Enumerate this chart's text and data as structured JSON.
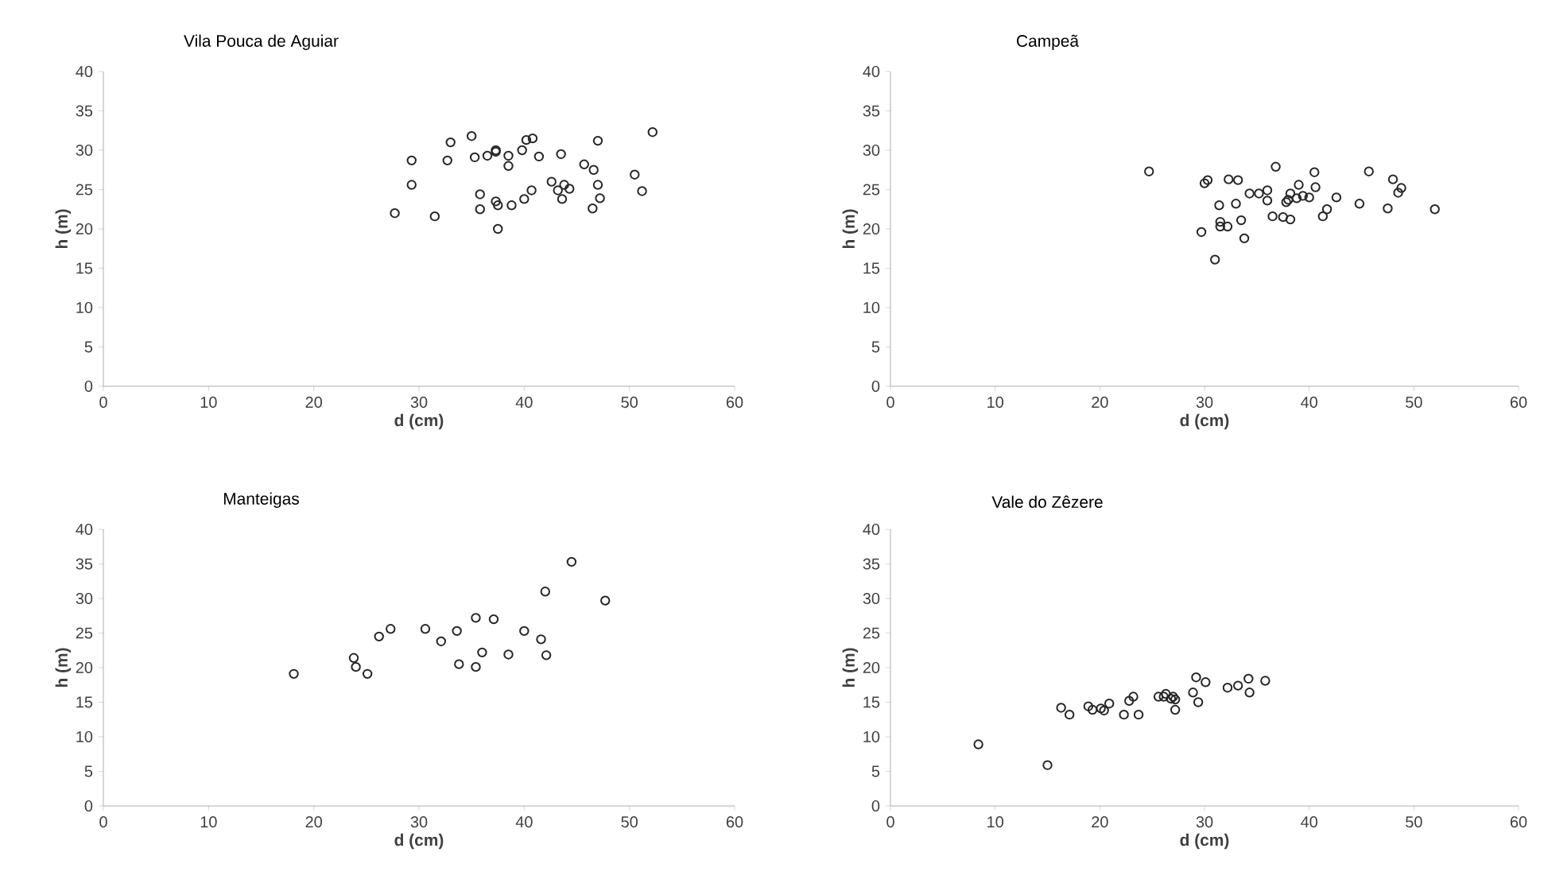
{
  "chart_data": [
    {
      "type": "scatter",
      "title": "Vila Pouca de Aguiar",
      "xlabel": "d (cm)",
      "ylabel": "h (m)",
      "marker": "circle",
      "color": "#262626",
      "xlim": [
        0,
        60
      ],
      "ylim": [
        0,
        40
      ],
      "xticks": [
        0,
        10,
        20,
        30,
        40,
        50,
        60
      ],
      "yticks": [
        0,
        5,
        10,
        15,
        20,
        25,
        30,
        35,
        40
      ],
      "x": [
        27.7,
        29.3,
        29.3,
        31.5,
        32.7,
        33,
        35,
        35.3,
        35.8,
        35.8,
        36.5,
        37.3,
        37.3,
        37.3,
        37.5,
        37.5,
        38.5,
        38.5,
        38.8,
        39.8,
        40,
        40.2,
        40.8,
        40.7,
        41.4,
        42.6,
        43.2,
        43.5,
        43.6,
        43.8,
        44.3,
        45.7,
        46.5,
        46.6,
        47,
        47,
        47.2,
        50.5,
        51.2,
        52.2
      ],
      "values": [
        22,
        28.7,
        25.6,
        21.6,
        28.7,
        31,
        31.8,
        29.1,
        24.4,
        22.5,
        29.3,
        30,
        29.8,
        23.5,
        23,
        20,
        29.3,
        28,
        23,
        30,
        23.8,
        31.3,
        31.5,
        24.9,
        29.2,
        26,
        24.9,
        29.5,
        23.8,
        25.6,
        25.1,
        28.2,
        22.6,
        27.5,
        31.2,
        25.6,
        23.9,
        26.9,
        24.8,
        32.3
      ]
    },
    {
      "type": "scatter",
      "title": "Campeã",
      "xlabel": "d (cm)",
      "ylabel": "h (m)",
      "marker": "circle",
      "color": "#262626",
      "xlim": [
        0,
        60
      ],
      "ylim": [
        0,
        40
      ],
      "xticks": [
        0,
        10,
        20,
        30,
        40,
        50,
        60
      ],
      "yticks": [
        0,
        5,
        10,
        15,
        20,
        25,
        30,
        35,
        40
      ],
      "x": [
        24.7,
        29.7,
        30,
        30.3,
        31,
        31.4,
        31.5,
        31.5,
        32.2,
        32.3,
        33,
        33.2,
        33.5,
        33.8,
        34.3,
        35.2,
        36,
        36,
        36.5,
        36.8,
        37.5,
        37.8,
        38,
        38.2,
        38.2,
        38.8,
        39,
        39.4,
        40,
        40.5,
        40.6,
        41.3,
        41.7,
        42.6,
        44.8,
        45.7,
        47.5,
        48,
        48.5,
        48.8,
        52
      ],
      "values": [
        27.3,
        19.6,
        25.8,
        26.2,
        16.1,
        23,
        20.9,
        20.3,
        20.3,
        26.3,
        23.2,
        26.2,
        21.1,
        18.8,
        24.5,
        24.5,
        23.6,
        24.9,
        21.6,
        27.9,
        21.5,
        23.4,
        23.7,
        21.2,
        24.5,
        23.9,
        25.6,
        24.2,
        24,
        27.2,
        25.3,
        21.6,
        22.5,
        24,
        23.2,
        27.3,
        22.6,
        26.3,
        24.6,
        25.2,
        22.5
      ]
    },
    {
      "type": "scatter",
      "title": "Manteigas",
      "xlabel": "d (cm)",
      "ylabel": "h (m)",
      "marker": "circle",
      "color": "#262626",
      "xlim": [
        0,
        60
      ],
      "ylim": [
        0,
        40
      ],
      "xticks": [
        0,
        10,
        20,
        30,
        40,
        50,
        60
      ],
      "yticks": [
        0,
        5,
        10,
        15,
        20,
        25,
        30,
        35,
        40
      ],
      "x": [
        18.1,
        23.8,
        24,
        25.1,
        26.2,
        27.3,
        30.6,
        32.1,
        33.6,
        33.8,
        35.4,
        35.4,
        36,
        37.1,
        38.5,
        40,
        41.6,
        42,
        42.1,
        44.5,
        47.7
      ],
      "values": [
        19.1,
        21.4,
        20.1,
        19.1,
        24.5,
        25.6,
        25.6,
        23.8,
        25.3,
        20.5,
        27.2,
        20.1,
        22.2,
        27,
        21.9,
        25.3,
        24.1,
        31,
        21.8,
        35.3,
        29.7
      ]
    },
    {
      "type": "scatter",
      "title": "Vale do Zêzere",
      "xlabel": "d (cm)",
      "ylabel": "h (m)",
      "marker": "circle",
      "color": "#262626",
      "xlim": [
        0,
        60
      ],
      "ylim": [
        0,
        40
      ],
      "xticks": [
        0,
        10,
        20,
        30,
        40,
        50,
        60
      ],
      "yticks": [
        0,
        5,
        10,
        15,
        20,
        25,
        30,
        35,
        40
      ],
      "x": [
        8.4,
        15,
        16.3,
        17.1,
        18.9,
        19.3,
        20.1,
        20.4,
        20.9,
        22.3,
        22.8,
        23.2,
        23.7,
        25.6,
        26.1,
        26.3,
        26.8,
        27,
        27.2,
        27.2,
        28.9,
        29.2,
        29.4,
        30.1,
        32.2,
        33.2,
        34.2,
        34.3,
        35.8
      ],
      "values": [
        8.9,
        5.9,
        14.2,
        13.2,
        14.4,
        13.9,
        14.1,
        13.8,
        14.8,
        13.2,
        15.2,
        15.8,
        13.2,
        15.8,
        15.8,
        16.2,
        15.5,
        15.8,
        13.9,
        15.4,
        16.4,
        18.6,
        15,
        17.9,
        17.1,
        17.4,
        18.4,
        16.4,
        18.1
      ]
    }
  ]
}
